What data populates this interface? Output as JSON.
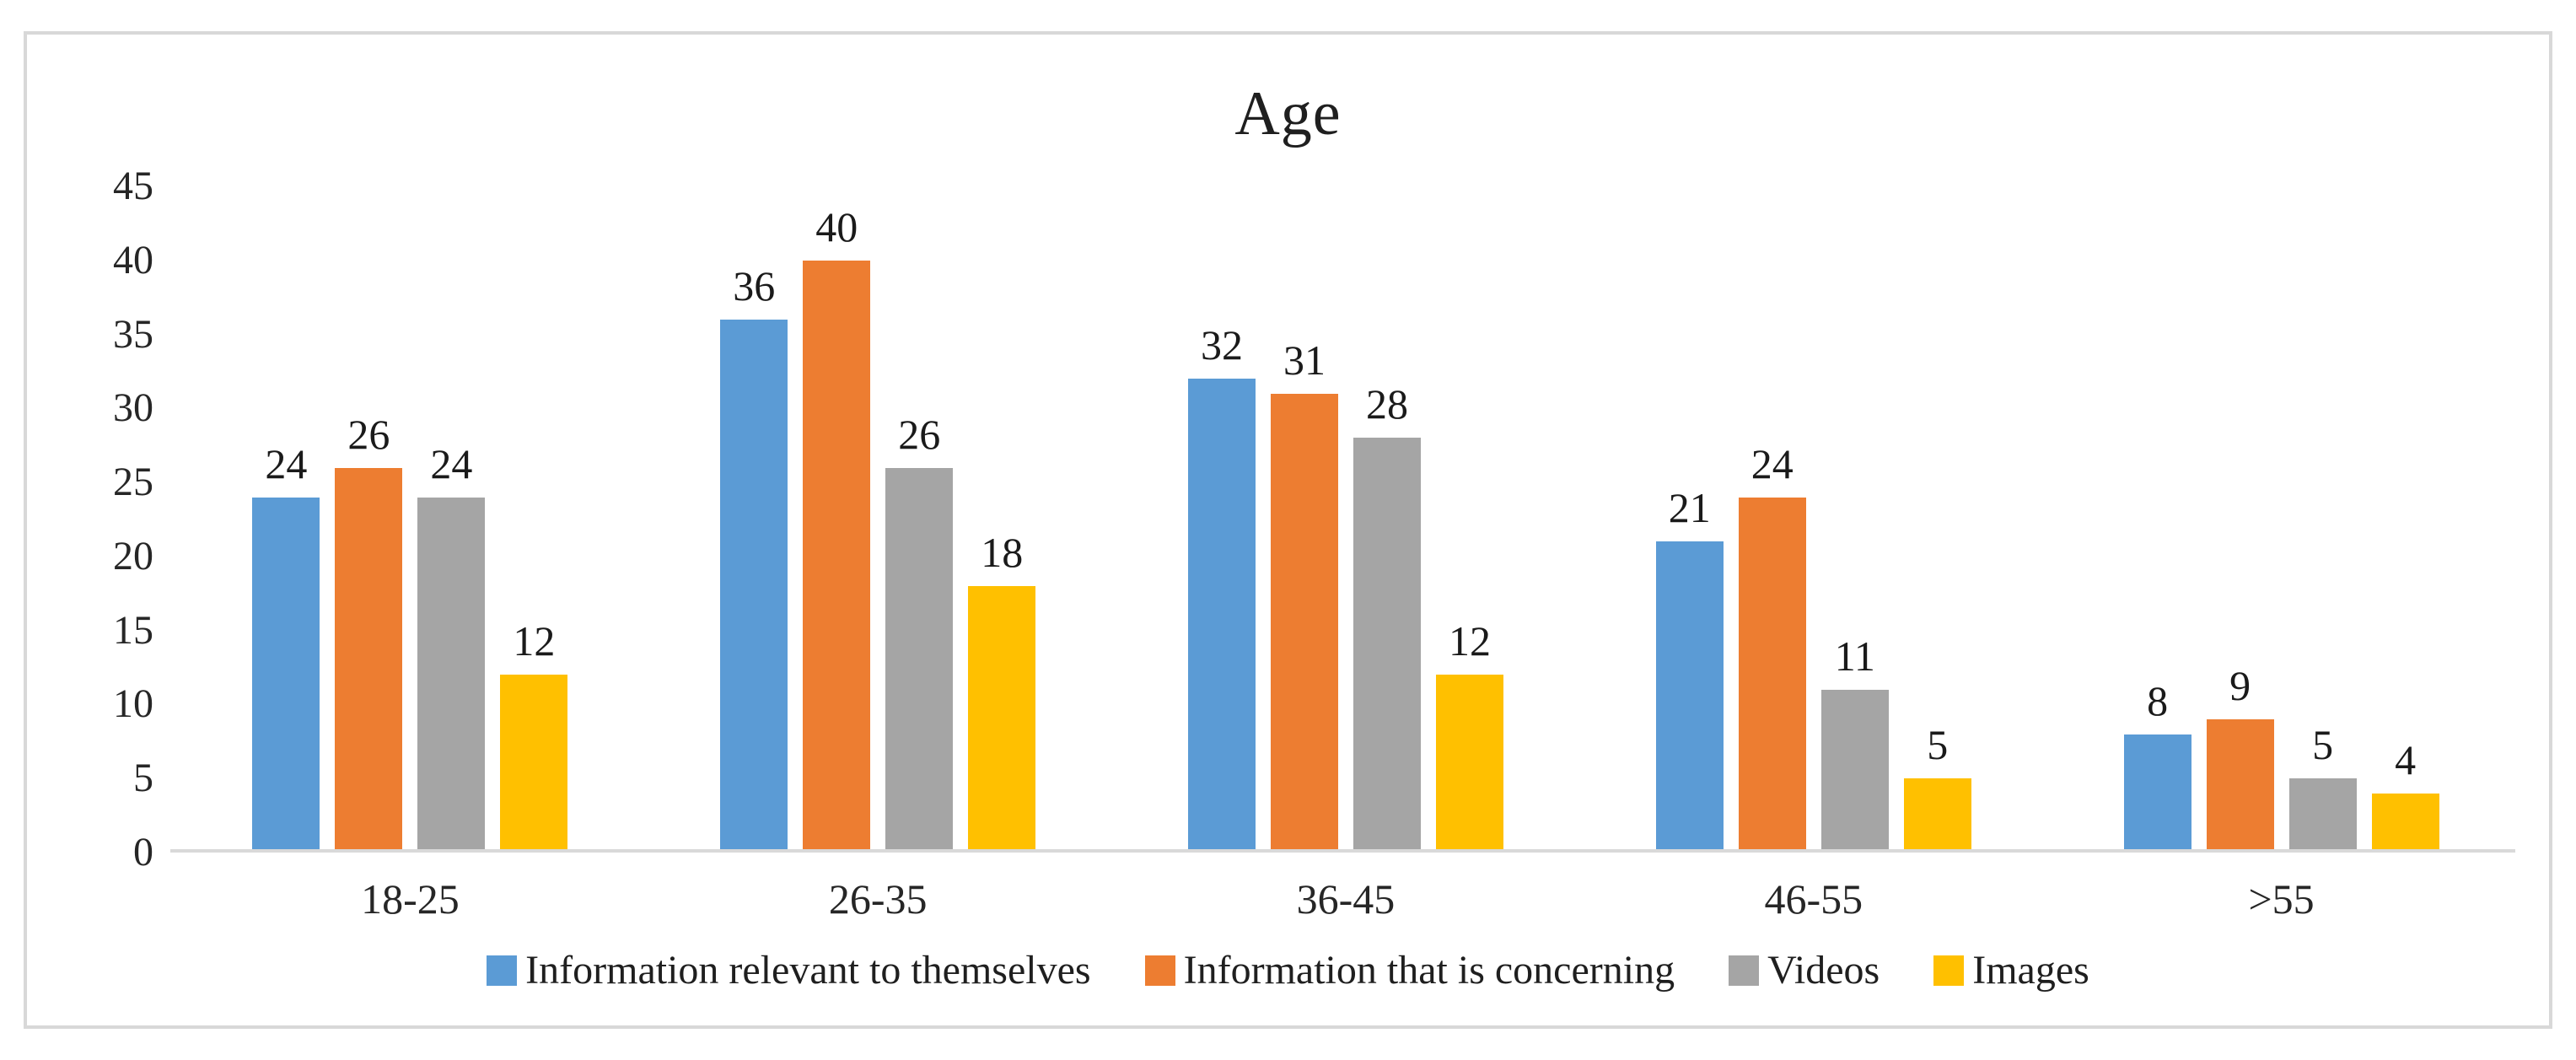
{
  "chart_data": {
    "type": "bar",
    "title": "Age",
    "categories": [
      "18-25",
      "26-35",
      "36-45",
      "46-55",
      ">55"
    ],
    "series": [
      {
        "name": "Information relevant to themselves",
        "color": "#5B9BD5",
        "values": [
          24,
          36,
          32,
          21,
          8
        ]
      },
      {
        "name": "Information that is concerning",
        "color": "#ED7D31",
        "values": [
          26,
          40,
          31,
          24,
          9
        ]
      },
      {
        "name": "Videos",
        "color": "#A5A5A5",
        "values": [
          24,
          26,
          28,
          11,
          5
        ]
      },
      {
        "name": "Images",
        "color": "#FFC000",
        "values": [
          12,
          18,
          12,
          5,
          4
        ]
      }
    ],
    "ylim": [
      0,
      45
    ],
    "y_ticks": [
      0,
      5,
      10,
      15,
      20,
      25,
      30,
      35,
      40,
      45
    ],
    "grid": false,
    "data_labels": true,
    "legend_position": "bottom"
  },
  "style": {
    "frame_border_color": "#d8d8d8",
    "axis_line_color": "#d9d9d9",
    "text_color": "#1f1f1f",
    "background": "#ffffff"
  }
}
